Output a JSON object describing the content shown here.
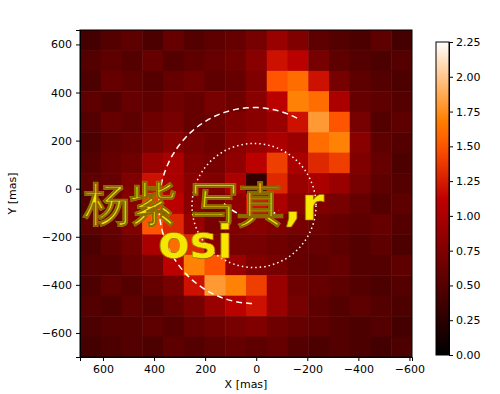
{
  "chart_data": {
    "type": "heatmap",
    "xlabel": "X [mas]",
    "ylabel": "Y [mas]",
    "xlim": [
      690,
      -610
    ],
    "xticks": [
      600,
      400,
      200,
      0,
      {
        "value": -200,
        "label": "−200"
      },
      {
        "value": -400,
        "label": "−400"
      },
      {
        "value": -600,
        "label": "−600"
      }
    ],
    "ylim": [
      -700,
      660
    ],
    "yticks": [
      600,
      400,
      200,
      0,
      {
        "value": -200,
        "label": "−200"
      },
      {
        "value": -400,
        "label": "−400"
      },
      {
        "value": -600,
        "label": "−600"
      }
    ],
    "cells": [
      [
        0.4,
        0.5,
        0.55,
        0.45,
        0.6,
        0.5,
        0.55,
        0.6,
        0.7,
        0.9,
        0.75,
        0.55,
        0.5,
        0.45,
        0.55,
        0.4
      ],
      [
        0.5,
        0.55,
        0.5,
        0.6,
        0.5,
        0.55,
        0.6,
        0.65,
        0.8,
        1.2,
        1.1,
        0.7,
        0.55,
        0.5,
        0.45,
        0.5
      ],
      [
        0.45,
        0.6,
        0.55,
        0.5,
        0.6,
        0.65,
        0.55,
        0.6,
        0.75,
        1.5,
        1.6,
        1.2,
        0.7,
        0.55,
        0.5,
        0.45
      ],
      [
        0.55,
        0.5,
        0.6,
        0.55,
        0.65,
        0.6,
        0.7,
        0.65,
        0.8,
        1.1,
        1.7,
        1.6,
        1.0,
        0.6,
        0.55,
        0.5
      ],
      [
        0.5,
        0.6,
        0.55,
        0.65,
        0.7,
        0.6,
        0.65,
        0.75,
        0.8,
        0.9,
        1.2,
        1.8,
        1.5,
        0.7,
        0.5,
        0.55
      ],
      [
        0.45,
        0.55,
        0.6,
        0.7,
        0.8,
        0.7,
        0.65,
        0.8,
        0.9,
        1.0,
        0.9,
        1.6,
        1.7,
        0.8,
        0.55,
        0.5
      ],
      [
        0.5,
        0.6,
        0.65,
        0.9,
        1.0,
        0.75,
        0.7,
        0.85,
        1.1,
        1.4,
        1.0,
        1.3,
        1.4,
        0.75,
        0.6,
        0.45
      ],
      [
        0.55,
        0.6,
        0.75,
        1.2,
        1.0,
        0.8,
        0.75,
        1.0,
        0.3,
        1.3,
        0.9,
        1.0,
        0.9,
        0.7,
        0.55,
        0.5
      ],
      [
        0.5,
        0.65,
        0.8,
        1.4,
        1.1,
        0.8,
        0.7,
        0.85,
        1.2,
        1.0,
        0.8,
        0.75,
        0.7,
        0.6,
        0.5,
        0.55
      ],
      [
        0.55,
        0.6,
        0.75,
        1.5,
        1.3,
        0.9,
        0.7,
        0.75,
        0.8,
        0.75,
        0.7,
        0.65,
        0.6,
        0.55,
        0.6,
        0.5
      ],
      [
        0.45,
        0.55,
        0.65,
        1.0,
        1.6,
        1.3,
        0.8,
        0.7,
        0.7,
        0.65,
        0.6,
        0.6,
        0.55,
        0.5,
        0.55,
        0.45
      ],
      [
        0.5,
        0.5,
        0.6,
        0.7,
        1.1,
        1.7,
        1.5,
        0.9,
        0.75,
        0.7,
        0.6,
        0.55,
        0.6,
        0.5,
        0.5,
        0.55
      ],
      [
        0.45,
        0.55,
        0.5,
        0.6,
        0.7,
        1.2,
        1.8,
        1.7,
        1.4,
        0.9,
        0.65,
        0.6,
        0.55,
        0.5,
        0.45,
        0.5
      ],
      [
        0.5,
        0.45,
        0.55,
        0.5,
        0.6,
        0.7,
        0.9,
        1.1,
        1.2,
        0.9,
        0.7,
        0.55,
        0.5,
        0.55,
        0.5,
        0.45
      ],
      [
        0.45,
        0.5,
        0.5,
        0.55,
        0.5,
        0.6,
        0.65,
        0.7,
        0.75,
        0.65,
        0.6,
        0.55,
        0.5,
        0.45,
        0.5,
        0.4
      ],
      [
        0.4,
        0.45,
        0.5,
        0.45,
        0.55,
        0.5,
        0.55,
        0.6,
        0.55,
        0.6,
        0.5,
        0.45,
        0.5,
        0.45,
        0.4,
        0.45
      ]
    ],
    "colorbar_range": [
      0,
      2.25
    ],
    "colorbar_ticks": [
      {
        "value": 0,
        "label": "0.00"
      },
      {
        "value": 0.25,
        "label": "0.25"
      },
      {
        "value": 0.5,
        "label": "0.50"
      },
      {
        "value": 0.75,
        "label": "0.75"
      },
      {
        "value": 1,
        "label": "1.00"
      },
      {
        "value": 1.25,
        "label": "1.25"
      },
      {
        "value": 1.5,
        "label": "1.50"
      },
      {
        "value": 1.75,
        "label": "1.75"
      },
      {
        "value": 2,
        "label": "2.00"
      },
      {
        "value": 2.25,
        "label": "2.25"
      }
    ],
    "annotations": [
      "杨紫 写真,r",
      "osi"
    ]
  }
}
